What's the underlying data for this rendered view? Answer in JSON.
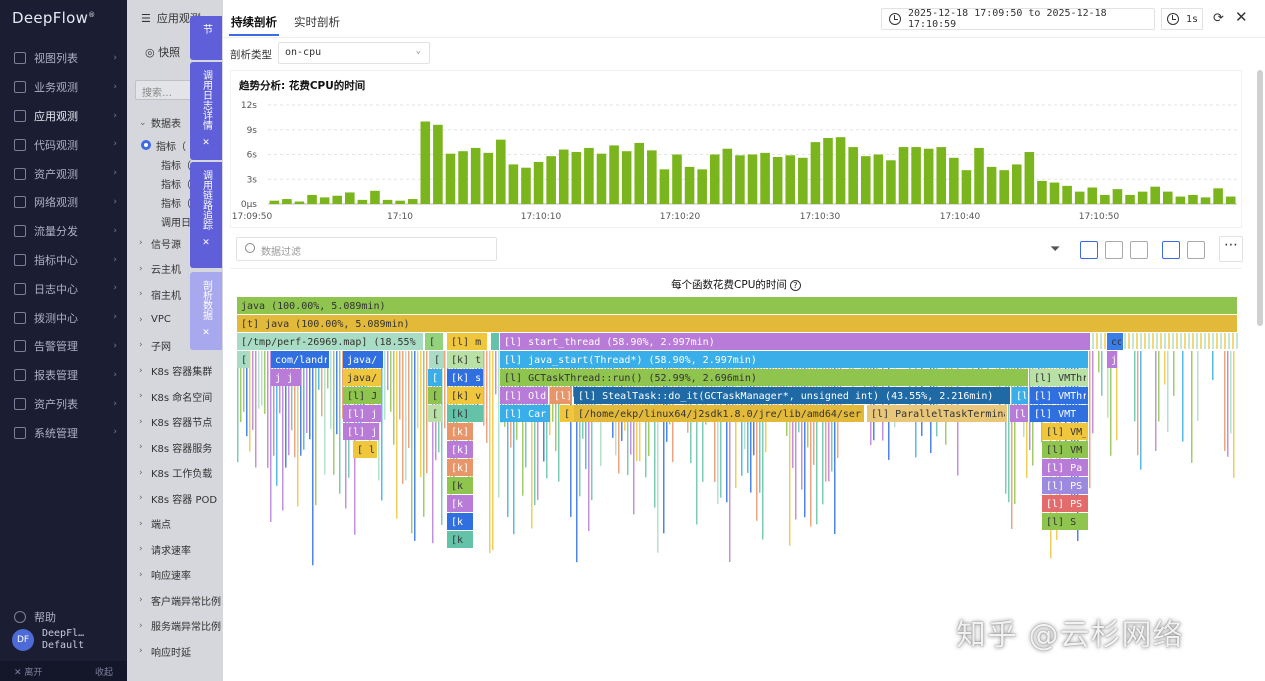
{
  "nav": {
    "logo": "DeepFlow",
    "items": [
      "视图列表",
      "业务观测",
      "应用观测",
      "代码观测",
      "资产观测",
      "网络观测",
      "流量分发",
      "指标中心",
      "日志中心",
      "拨测中心",
      "告警管理",
      "报表管理",
      "资产列表",
      "系统管理"
    ],
    "help": "帮助",
    "user_name": "DeepFl…",
    "user_role": "Default",
    "avatar": "DF",
    "bottom_left": "✕ 离开",
    "bottom_right": "收起"
  },
  "panel2": {
    "title": "应用观测",
    "quick": "快照",
    "search": "搜索…",
    "group": "数据表",
    "items": [
      "指标（",
      "指标（",
      "指标（",
      "指标（",
      "调用日"
    ],
    "rows": [
      "信号源",
      "云主机",
      "宿主机",
      "VPC",
      "子网",
      "K8s 容器集群",
      "K8s 命名空间",
      "K8s 容器节点",
      "K8s 容器服务",
      "K8s 工作负载",
      "K8s 容器 POD",
      "端点",
      "请求速率",
      "响应速率",
      "客户端异常比例",
      "服务端异常比例",
      "响应时延"
    ]
  },
  "vtabs": [
    {
      "label": "节",
      "close": ""
    },
    {
      "label": "调用日志详情",
      "close": "✕"
    },
    {
      "label": "调用链路追踪",
      "close": "✕"
    },
    {
      "label": "剖析数据",
      "close": "✕"
    }
  ],
  "main": {
    "tabs": [
      "持续剖析",
      "实时剖析"
    ],
    "time_range": "2025-12-18 17:09:50 to 2025-12-18 17:10:59",
    "interval": "1s",
    "profile_type_label": "剖析类型",
    "profile_type": "on-cpu",
    "trend_title": "趋势分析: 花费CPU的时间",
    "filter_placeholder": "数据过滤",
    "flame_title": "每个函数花费CPU的时间",
    "watermark": "知乎 @云杉网络"
  },
  "chart_data": {
    "type": "bar",
    "title": "趋势分析: 花费CPU的时间",
    "ylabel": "",
    "y_ticks": [
      "12s",
      "9s",
      "6s",
      "3s",
      "0μs"
    ],
    "x_ticks": [
      "17:09:50",
      "17:10",
      "17:10:10",
      "17:10:20",
      "17:10:30",
      "17:10:40",
      "17:10:50"
    ],
    "ylim": [
      0,
      12
    ],
    "color": "#7ab51d",
    "values": [
      0.4,
      0.6,
      0.3,
      1.1,
      0.8,
      1.0,
      1.4,
      0.5,
      1.6,
      0.5,
      0.4,
      0.6,
      10.0,
      9.6,
      6.1,
      6.4,
      6.8,
      6.2,
      7.8,
      4.8,
      4.4,
      5.1,
      5.8,
      6.6,
      6.3,
      6.8,
      6.1,
      7.1,
      6.4,
      7.4,
      6.5,
      4.2,
      6.0,
      4.5,
      4.2,
      6.0,
      6.7,
      5.9,
      6.0,
      6.2,
      5.7,
      5.9,
      5.6,
      7.5,
      8.0,
      8.1,
      6.9,
      5.8,
      6.0,
      5.3,
      6.9,
      6.9,
      6.7,
      6.9,
      5.6,
      4.1,
      6.8,
      4.5,
      4.1,
      4.8,
      6.3,
      2.8,
      2.6,
      2.2,
      1.5,
      2.0,
      1.1,
      1.8,
      1.1,
      1.5,
      2.1,
      1.5,
      0.9,
      1.1,
      0.8,
      1.9,
      0.9
    ]
  },
  "flame": {
    "frames": [
      {
        "depth": 0,
        "x": 0,
        "w": 1000,
        "color": "#8fc44e",
        "label": "java (100.00%, 5.089min)"
      },
      {
        "depth": 1,
        "x": 0,
        "w": 1000,
        "color": "#e3b93a",
        "label": "[t] java (100.00%, 5.089min)"
      },
      {
        "depth": 2,
        "x": 0,
        "w": 186,
        "color": "#a9dcc4",
        "label": "[/tmp/perf-26969.map] (18.55%"
      },
      {
        "depth": 2,
        "x": 188,
        "w": 18,
        "color": "#94d17b",
        "label": "["
      },
      {
        "depth": 2,
        "x": 210,
        "w": 40,
        "color": "#f0c63d",
        "label": "[l] m"
      },
      {
        "depth": 2,
        "x": 254,
        "w": 8,
        "color": "#64c2a8",
        "label": "["
      },
      {
        "depth": 2,
        "x": 263,
        "w": 590,
        "color": "#b87cd8",
        "label": "[l] start_thread (58.90%, 2.997min)"
      },
      {
        "depth": 2,
        "x": 870,
        "w": 16,
        "color": "#3a7de6",
        "label": "co"
      },
      {
        "depth": 3,
        "x": 0,
        "w": 12,
        "color": "#a9dcc4",
        "label": "["
      },
      {
        "depth": 3,
        "x": 34,
        "w": 58,
        "color": "#2f6fe0",
        "label": "com/landr"
      },
      {
        "depth": 3,
        "x": 106,
        "w": 40,
        "color": "#2f6fe0",
        "label": "java/"
      },
      {
        "depth": 3,
        "x": 193,
        "w": 14,
        "color": "#a9dcc4",
        "label": "["
      },
      {
        "depth": 3,
        "x": 210,
        "w": 36,
        "color": "#b9e0a5",
        "label": "[k] t"
      },
      {
        "depth": 3,
        "x": 263,
        "w": 588,
        "color": "#3aaee8",
        "label": "[l] java_start(Thread*) (58.90%, 2.997min)"
      },
      {
        "depth": 3,
        "x": 870,
        "w": 10,
        "color": "#b87cd8",
        "label": "j"
      },
      {
        "depth": 4,
        "x": 34,
        "w": 30,
        "color": "#b87cd8",
        "label": "j j"
      },
      {
        "depth": 4,
        "x": 106,
        "w": 38,
        "color": "#f0c63d",
        "label": "java/"
      },
      {
        "depth": 4,
        "x": 191,
        "w": 14,
        "color": "#3aaee8",
        "label": "["
      },
      {
        "depth": 4,
        "x": 210,
        "w": 36,
        "color": "#2f6fe0",
        "label": "[k] s"
      },
      {
        "depth": 4,
        "x": 263,
        "w": 528,
        "color": "#8fc44e",
        "label": "[l] GCTaskThread::run() (52.99%, 2.696min)"
      },
      {
        "depth": 4,
        "x": 793,
        "w": 58,
        "color": "#b9e0a5",
        "label": "[l] VMThr"
      },
      {
        "depth": 5,
        "x": 106,
        "w": 38,
        "color": "#8fc44e",
        "label": "[l] J"
      },
      {
        "depth": 5,
        "x": 191,
        "w": 14,
        "color": "#8fc44e",
        "label": "["
      },
      {
        "depth": 5,
        "x": 210,
        "w": 36,
        "color": "#f0c63d",
        "label": "[k] v"
      },
      {
        "depth": 5,
        "x": 263,
        "w": 48,
        "color": "#b87cd8",
        "label": "[l] Old"
      },
      {
        "depth": 5,
        "x": 313,
        "w": 22,
        "color": "#e9956a",
        "label": "[l]"
      },
      {
        "depth": 5,
        "x": 337,
        "w": 436,
        "color": "#1f6aa5",
        "label": "[l] StealTask::do_it(GCTaskManager*, unsigned int) (43.55%, 2.216min)"
      },
      {
        "depth": 5,
        "x": 775,
        "w": 16,
        "color": "#3aaee8",
        "label": "[l"
      },
      {
        "depth": 5,
        "x": 793,
        "w": 58,
        "color": "#2f6fe0",
        "label": "[l] VMThr"
      },
      {
        "depth": 6,
        "x": 106,
        "w": 38,
        "color": "#b87cd8",
        "label": "[l] j"
      },
      {
        "depth": 6,
        "x": 191,
        "w": 14,
        "color": "#b9e0a5",
        "label": "["
      },
      {
        "depth": 6,
        "x": 210,
        "w": 36,
        "color": "#64c2a8",
        "label": "[k]"
      },
      {
        "depth": 6,
        "x": 263,
        "w": 50,
        "color": "#3aaee8",
        "label": "[l] Car"
      },
      {
        "depth": 6,
        "x": 323,
        "w": 14,
        "color": "#f0c63d",
        "label": "["
      },
      {
        "depth": 6,
        "x": 337,
        "w": 290,
        "color": "#e3b93a",
        "label": "[/home/ekp/linux64/j2sdk1.8.0/jre/lib/amd64/server"
      },
      {
        "depth": 6,
        "x": 630,
        "w": 140,
        "color": "#e8c77a",
        "label": "[l] ParallelTaskTermina"
      },
      {
        "depth": 6,
        "x": 773,
        "w": 18,
        "color": "#b87cd8",
        "label": "[l"
      },
      {
        "depth": 6,
        "x": 793,
        "w": 58,
        "color": "#2f6fe0",
        "label": "[l] VMT"
      },
      {
        "depth": 7,
        "x": 106,
        "w": 36,
        "color": "#b87cd8",
        "label": "[l] j"
      },
      {
        "depth": 7,
        "x": 210,
        "w": 26,
        "color": "#e9956a",
        "label": "[k]"
      },
      {
        "depth": 7,
        "x": 805,
        "w": 46,
        "color": "#f0c63d",
        "label": "[l] VM_"
      },
      {
        "depth": 8,
        "x": 116,
        "w": 24,
        "color": "#f0c63d",
        "label": "[ l"
      },
      {
        "depth": 8,
        "x": 210,
        "w": 26,
        "color": "#b87cd8",
        "label": "[k]"
      },
      {
        "depth": 8,
        "x": 805,
        "w": 46,
        "color": "#8fc44e",
        "label": "[l] VM"
      },
      {
        "depth": 9,
        "x": 210,
        "w": 26,
        "color": "#e9956a",
        "label": "[k]"
      },
      {
        "depth": 9,
        "x": 805,
        "w": 46,
        "color": "#b87cd8",
        "label": "[l] Pa"
      },
      {
        "depth": 10,
        "x": 210,
        "w": 26,
        "color": "#8fc44e",
        "label": "[k"
      },
      {
        "depth": 10,
        "x": 805,
        "w": 46,
        "color": "#9b8ae0",
        "label": "[l] PS"
      },
      {
        "depth": 11,
        "x": 210,
        "w": 26,
        "color": "#b87cd8",
        "label": "[k"
      },
      {
        "depth": 11,
        "x": 805,
        "w": 46,
        "color": "#e36b6b",
        "label": "[l] PS"
      },
      {
        "depth": 12,
        "x": 210,
        "w": 26,
        "color": "#2f6fe0",
        "label": "[k"
      },
      {
        "depth": 12,
        "x": 805,
        "w": 46,
        "color": "#8fc44e",
        "label": "[l] S"
      },
      {
        "depth": 13,
        "x": 210,
        "w": 26,
        "color": "#64c2a8",
        "label": "[k"
      }
    ]
  }
}
